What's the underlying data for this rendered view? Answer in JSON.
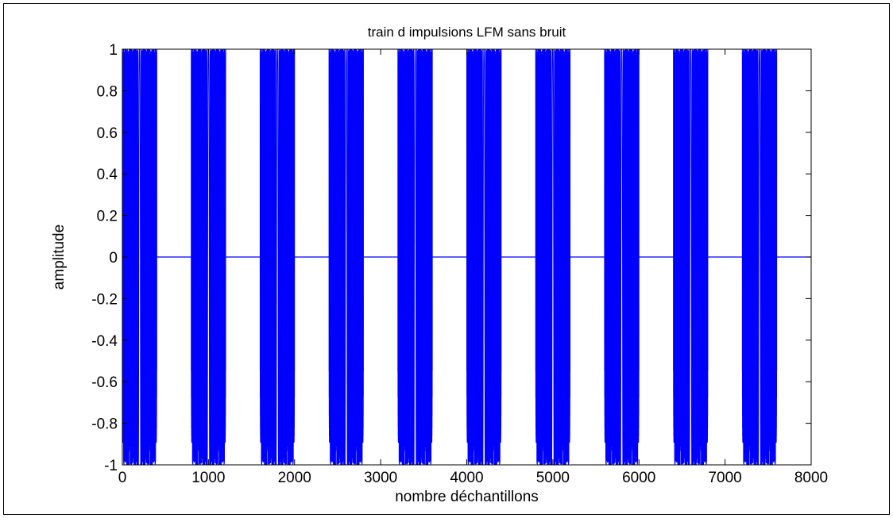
{
  "chart_data": {
    "type": "line",
    "title": "train d impulsions LFM sans bruit",
    "xlabel": "nombre déchantillons",
    "ylabel": "amplitude",
    "xlim": [
      0,
      8000
    ],
    "ylim": [
      -1,
      1
    ],
    "x_ticks": [
      0,
      1000,
      2000,
      3000,
      4000,
      5000,
      6000,
      7000,
      8000
    ],
    "x_tick_labels": [
      "0",
      "1000",
      "2000",
      "3000",
      "4000",
      "5000",
      "6000",
      "7000",
      "8000"
    ],
    "y_ticks": [
      -1,
      -0.8,
      -0.6,
      -0.4,
      -0.2,
      0,
      0.2,
      0.4,
      0.6,
      0.8,
      1
    ],
    "y_tick_labels": [
      "-1",
      "-0.8",
      "-0.6",
      "-0.4",
      "-0.2",
      "0",
      "0.2",
      "0.4",
      "0.6",
      "0.8",
      "1"
    ],
    "grid": false,
    "series_color": "#0000ff",
    "pulses": [
      {
        "start": 0,
        "end": 400
      },
      {
        "start": 800,
        "end": 1200
      },
      {
        "start": 1600,
        "end": 2000
      },
      {
        "start": 2400,
        "end": 2800
      },
      {
        "start": 3200,
        "end": 3600
      },
      {
        "start": 4000,
        "end": 4400
      },
      {
        "start": 4800,
        "end": 5200
      },
      {
        "start": 5600,
        "end": 6000
      },
      {
        "start": 6400,
        "end": 6800
      },
      {
        "start": 7200,
        "end": 7600
      }
    ],
    "pulse_amplitude": 1,
    "baseline": 0,
    "samples": 8000
  }
}
